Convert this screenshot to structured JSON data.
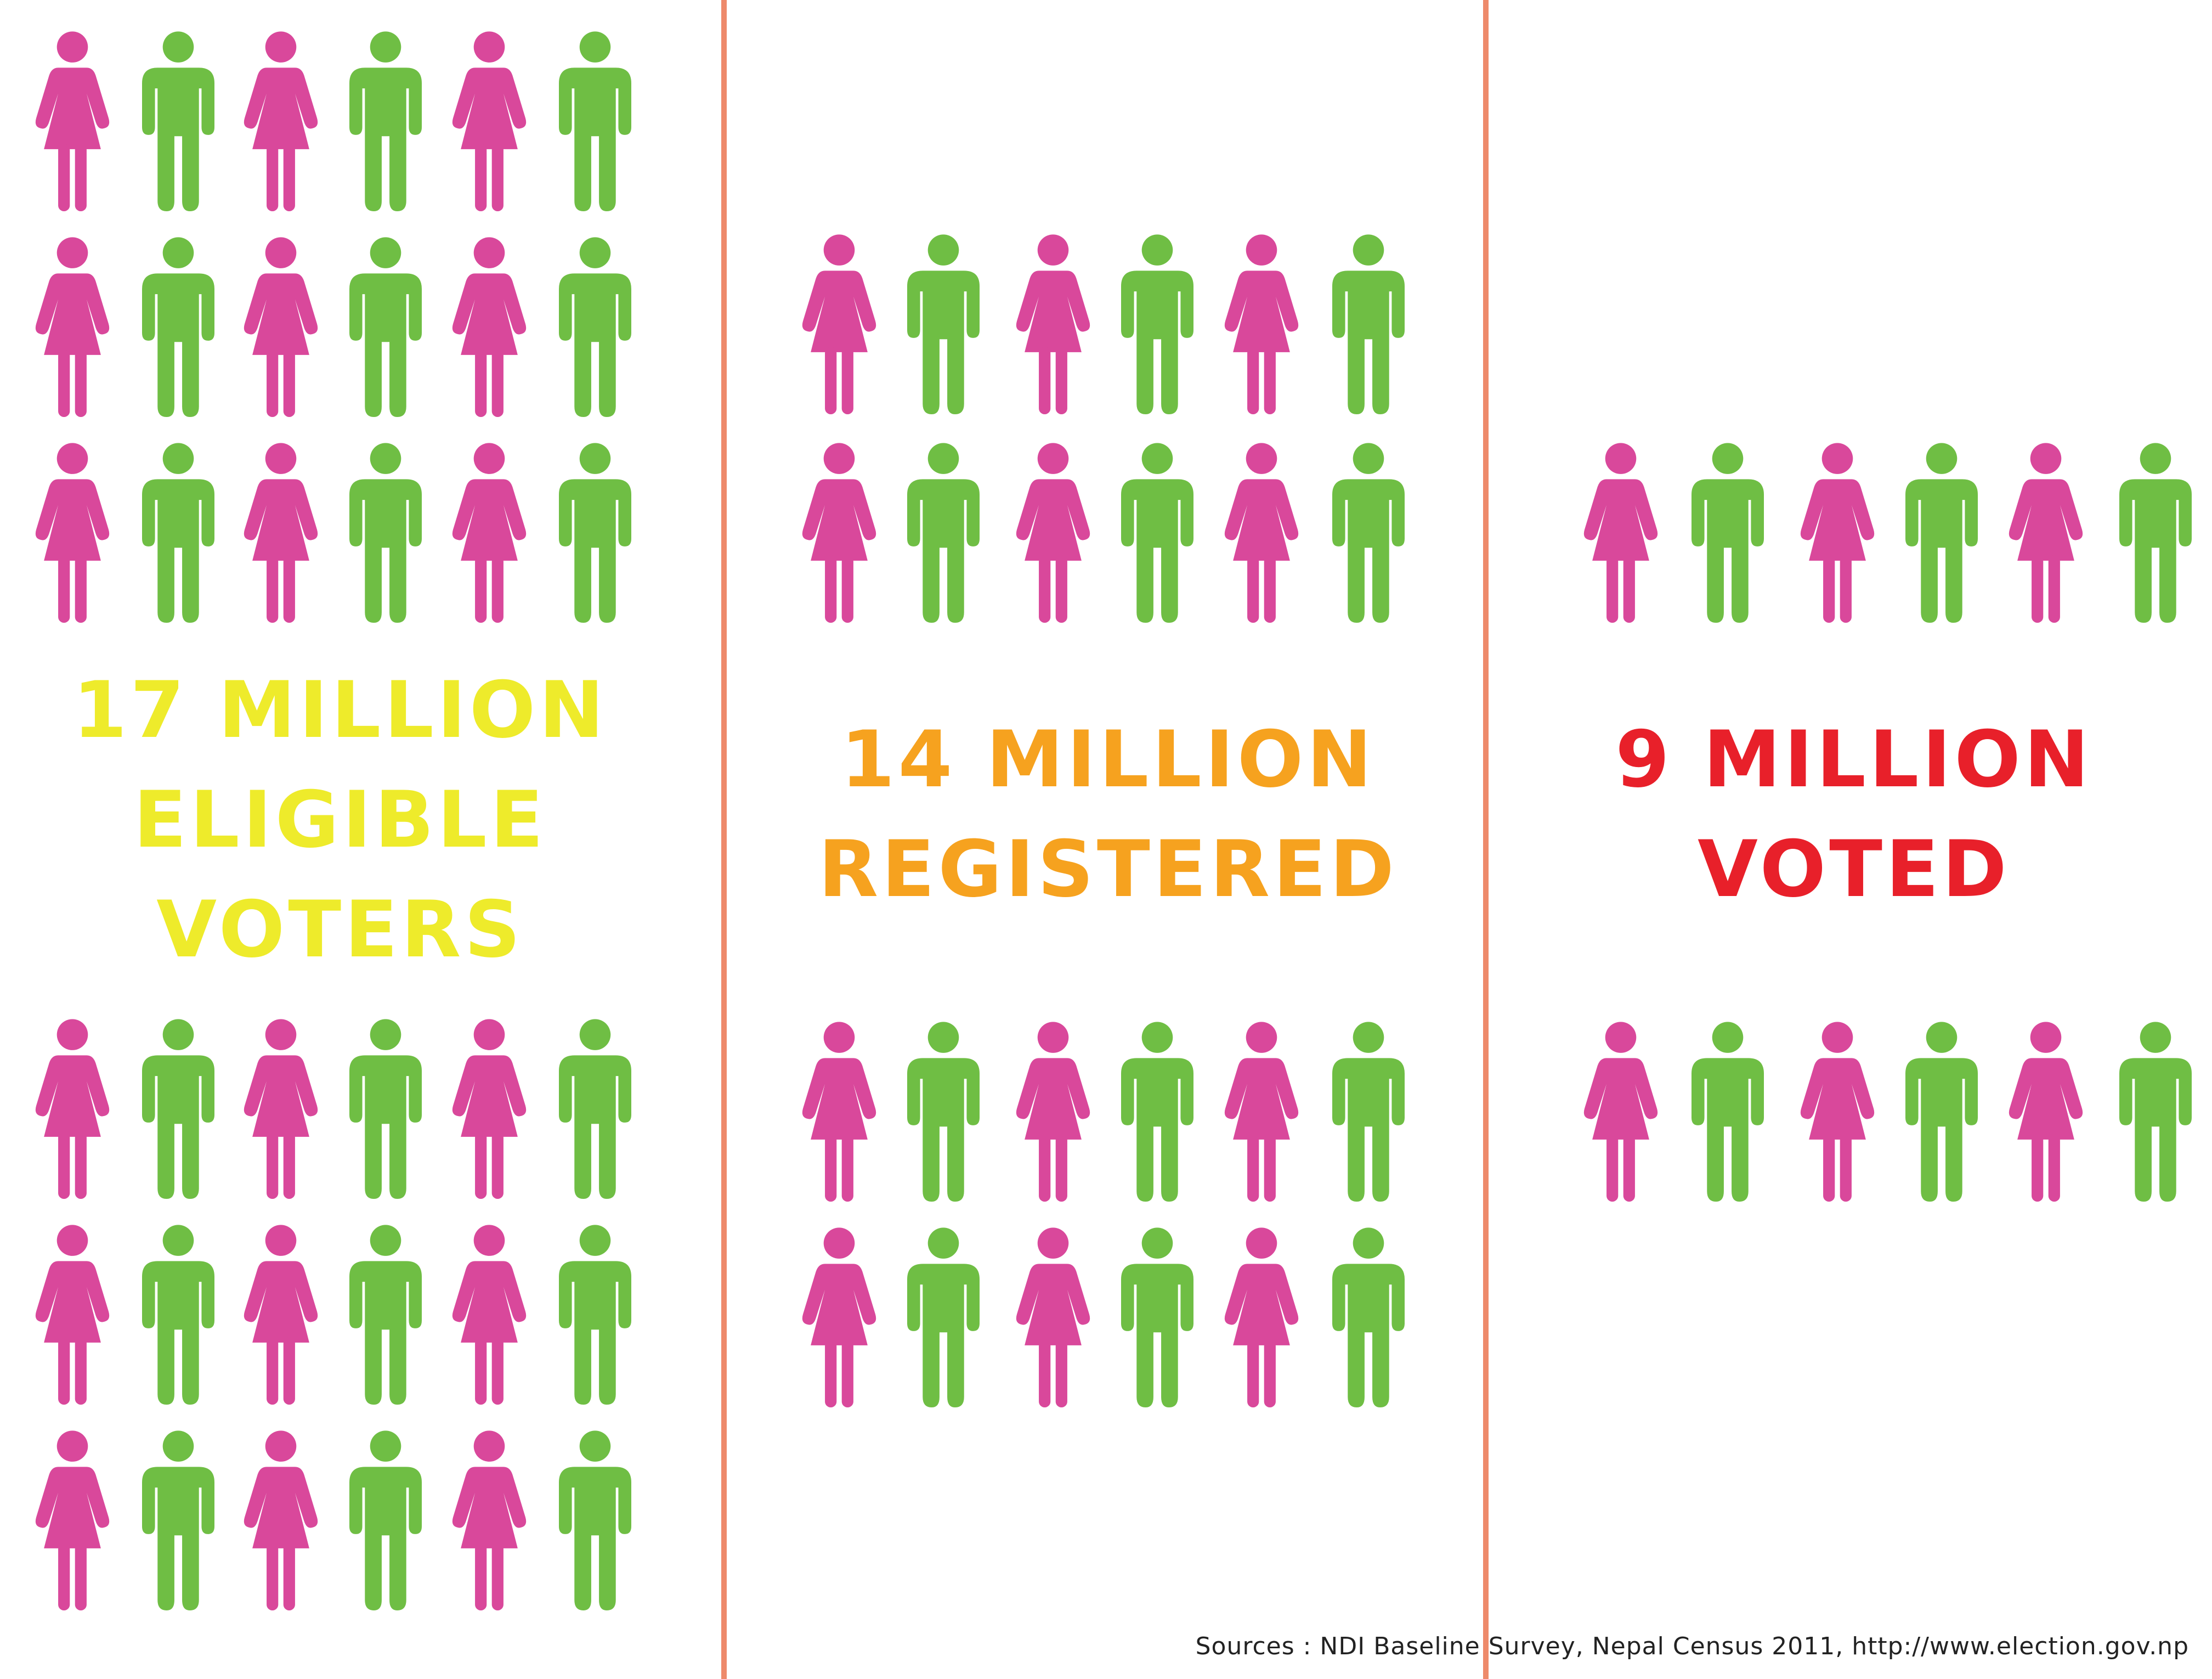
{
  "colors": {
    "female": "#d9489b",
    "male": "#6fbe44",
    "divider": "#ee8a6b",
    "eligible": "#eeeb2b",
    "registered": "#f6a21f",
    "voted": "#e8202a"
  },
  "icons": {
    "female": "woman-icon",
    "male": "man-icon"
  },
  "chart_data": {
    "type": "pictogram",
    "unit_pattern": [
      "female",
      "male"
    ],
    "categories": [
      "Eligible voters",
      "Registered",
      "Voted"
    ],
    "values_million": [
      17,
      14,
      9
    ],
    "columns": [
      {
        "lines": [
          "17 MILLION",
          "ELIGIBLE",
          "VOTERS"
        ],
        "color_key": "eligible",
        "icon_rows": 6,
        "icons_per_row": 6
      },
      {
        "lines": [
          "14 MILLION",
          "REGISTERED"
        ],
        "color_key": "registered",
        "icon_rows": 4,
        "icons_per_row": 6
      },
      {
        "lines": [
          "9 MILLION",
          "VOTED"
        ],
        "color_key": "voted",
        "icon_rows": 2,
        "icons_per_row": 6
      }
    ]
  },
  "footer": {
    "source": "Sources : NDI Baseline Survey, Nepal Census 2011, http://www.election.gov.np"
  }
}
